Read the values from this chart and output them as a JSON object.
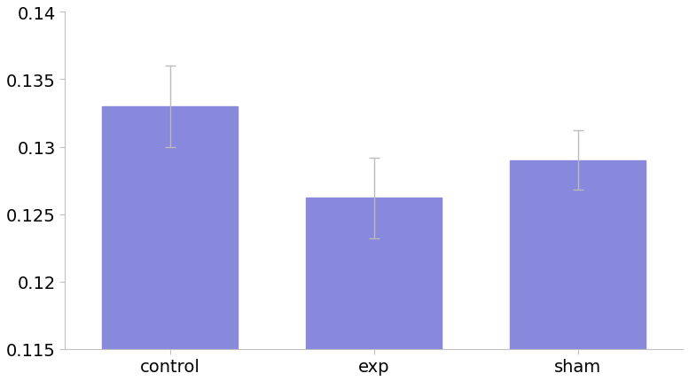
{
  "categories": [
    "control",
    "exp",
    "sham"
  ],
  "values": [
    0.133,
    0.1262,
    0.129
  ],
  "errors": [
    0.003,
    0.003,
    0.0022
  ],
  "bar_color": "#8888dd",
  "bar_width": 0.22,
  "x_positions": [
    0.17,
    0.5,
    0.83
  ],
  "ylim": [
    0.115,
    0.14
  ],
  "yticks": [
    0.115,
    0.12,
    0.125,
    0.13,
    0.135,
    0.14
  ],
  "error_color": "#bbbbbb",
  "error_capsize": 4,
  "error_linewidth": 1.0,
  "tick_label_fontsize": 14,
  "background_color": "#ffffff",
  "spine_color": "#c0c0c0",
  "tick_color": "#c0c0c0"
}
